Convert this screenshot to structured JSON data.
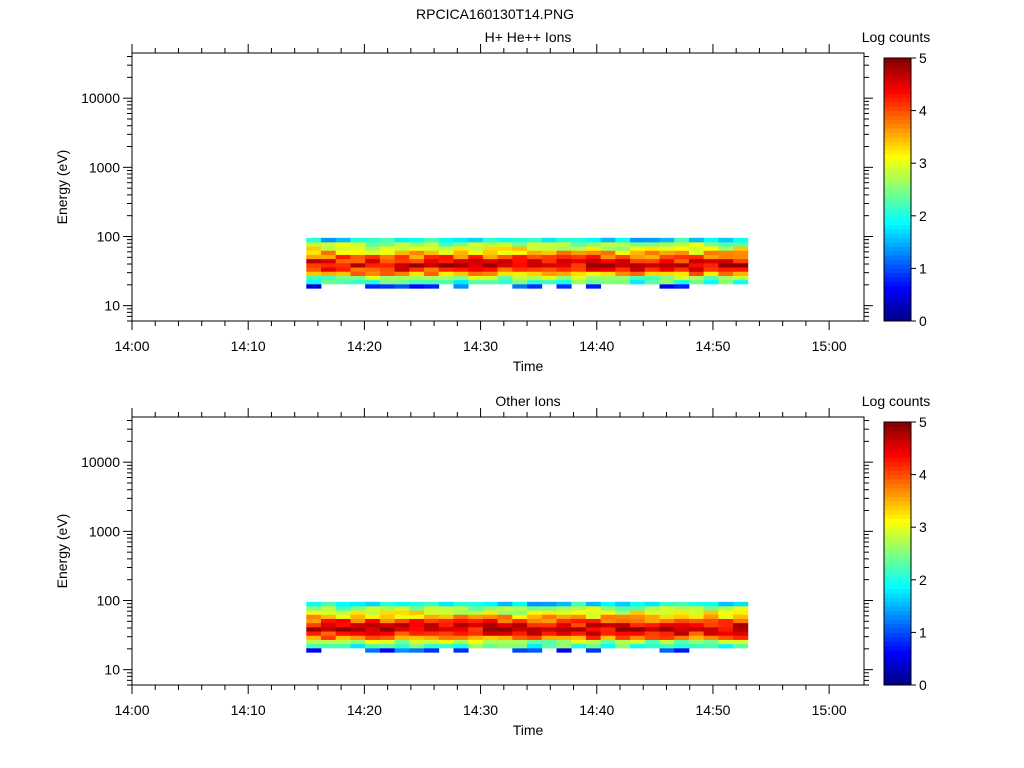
{
  "figure_title": "RPCICA160130T14.PNG",
  "colormap": [
    "#000080",
    "#0000ff",
    "#0080ff",
    "#00ffff",
    "#80ff80",
    "#ffff00",
    "#ff8000",
    "#ff0000",
    "#800000"
  ],
  "chart_data": [
    {
      "type": "heatmap",
      "title": "H+ He++ Ions",
      "xlabel": "Time",
      "ylabel": "Energy (eV)",
      "yscale": "log",
      "ylim": [
        6,
        45000
      ],
      "xlim_minutes": [
        0,
        63
      ],
      "x_ticks": [
        "14:00",
        "14:10",
        "14:20",
        "14:30",
        "14:40",
        "14:50",
        "15:00"
      ],
      "y_ticks": [
        "10",
        "100",
        "1000",
        "10000"
      ],
      "colorbar": {
        "label": "Log counts",
        "min": 0,
        "max": 5,
        "ticks": [
          "0",
          "1",
          "2",
          "3",
          "4",
          "5"
        ]
      },
      "data_time_range": [
        "14:15",
        "14:53"
      ],
      "energy_bins": [
        19.2,
        22.1,
        25.4,
        29.2,
        33.6,
        38.7,
        44.5,
        51.1,
        58.8,
        67.6,
        77.8,
        89.4
      ],
      "log_counts_profile": [
        0.9,
        2.2,
        2.6,
        3.6,
        4.2,
        4.5,
        4.3,
        3.9,
        3.4,
        3.0,
        2.6,
        1.8
      ]
    },
    {
      "type": "heatmap",
      "title": "Other Ions",
      "xlabel": "Time",
      "ylabel": "Energy (eV)",
      "yscale": "log",
      "ylim": [
        6,
        45000
      ],
      "xlim_minutes": [
        0,
        63
      ],
      "x_ticks": [
        "14:00",
        "14:10",
        "14:20",
        "14:30",
        "14:40",
        "14:50",
        "15:00"
      ],
      "y_ticks": [
        "10",
        "100",
        "1000",
        "10000"
      ],
      "colorbar": {
        "label": "Log counts",
        "min": 0,
        "max": 5,
        "ticks": [
          "0",
          "1",
          "2",
          "3",
          "4",
          "5"
        ]
      },
      "data_time_range": [
        "14:15",
        "14:53"
      ],
      "energy_bins": [
        19.2,
        22.1,
        25.4,
        29.2,
        33.6,
        38.7,
        44.5,
        51.1,
        58.8,
        67.6,
        77.8,
        89.4
      ],
      "log_counts_profile": [
        0.9,
        2.2,
        2.7,
        3.8,
        4.3,
        4.5,
        4.4,
        4.0,
        3.4,
        3.0,
        2.6,
        1.8
      ]
    }
  ]
}
